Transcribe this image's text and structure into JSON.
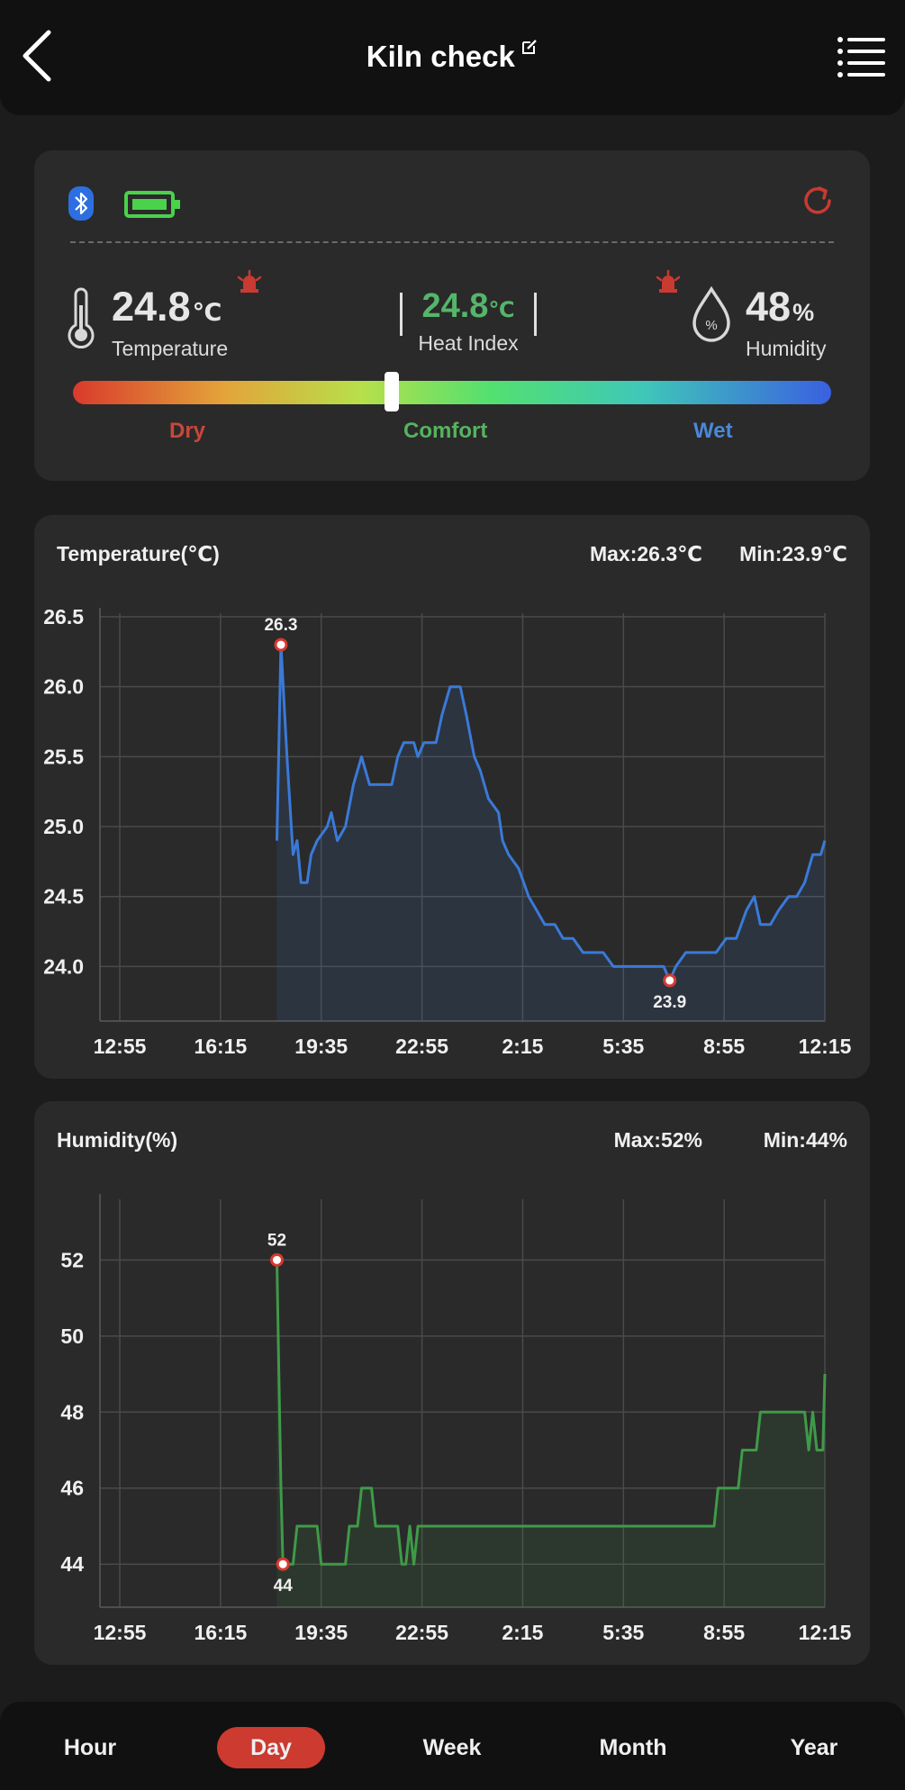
{
  "header": {
    "title": "Kiln check"
  },
  "status": {
    "temperature": {
      "value": "24.8",
      "unit": "℃",
      "label": "Temperature"
    },
    "heat_index": {
      "value": "24.8",
      "unit": "℃",
      "label": "Heat Index"
    },
    "humidity": {
      "value": "48",
      "unit": "%",
      "label": "Humidity"
    },
    "comfort_level": 0.42,
    "levels": {
      "dry": "Dry",
      "comfort": "Comfort",
      "wet": "Wet"
    },
    "colors": {
      "dry": "#c9473a",
      "comfort": "#56b35f",
      "wet": "#4a88d8",
      "alarm": "#c93a32",
      "bluetooth": "#2d6fe0",
      "battery": "#4ad24a"
    }
  },
  "icons": [
    "back-arrow-icon",
    "edit-icon",
    "menu-list-icon",
    "bluetooth-icon",
    "battery-icon",
    "refresh-icon",
    "thermometer-icon",
    "alarm-bell-icon",
    "water-drop-icon"
  ],
  "tabs": [
    {
      "label": "Hour",
      "active": false
    },
    {
      "label": "Day",
      "active": true
    },
    {
      "label": "Week",
      "active": false
    },
    {
      "label": "Month",
      "active": false
    },
    {
      "label": "Year",
      "active": false
    }
  ],
  "chart_data": [
    {
      "type": "area",
      "title": "Temperature(℃)",
      "max_label": "Max:26.3℃",
      "min_label": "Min:23.9℃",
      "color": "#3a7ad8",
      "x_ticks": [
        "12:55",
        "16:15",
        "19:35",
        "22:55",
        "2:15",
        "5:35",
        "8:55",
        "12:15"
      ],
      "y_ticks": [
        "26.5",
        "26.0",
        "25.5",
        "25.0",
        "24.5",
        "24.0"
      ],
      "ylim": [
        23.7,
        26.5
      ],
      "xlim": [
        0,
        7
      ],
      "max_point": {
        "x": 1.6,
        "y": 26.3,
        "label": "26.3"
      },
      "min_point": {
        "x": 5.46,
        "y": 23.9,
        "label": "23.9"
      },
      "points": [
        [
          1.56,
          24.9
        ],
        [
          1.6,
          26.3
        ],
        [
          1.66,
          25.5
        ],
        [
          1.72,
          24.8
        ],
        [
          1.76,
          24.9
        ],
        [
          1.8,
          24.6
        ],
        [
          1.86,
          24.6
        ],
        [
          1.9,
          24.8
        ],
        [
          1.96,
          24.9
        ],
        [
          2.06,
          25.0
        ],
        [
          2.1,
          25.1
        ],
        [
          2.16,
          24.9
        ],
        [
          2.24,
          25.0
        ],
        [
          2.32,
          25.3
        ],
        [
          2.4,
          25.5
        ],
        [
          2.48,
          25.3
        ],
        [
          2.6,
          25.3
        ],
        [
          2.7,
          25.3
        ],
        [
          2.76,
          25.5
        ],
        [
          2.82,
          25.6
        ],
        [
          2.92,
          25.6
        ],
        [
          2.96,
          25.5
        ],
        [
          3.02,
          25.6
        ],
        [
          3.14,
          25.6
        ],
        [
          3.2,
          25.8
        ],
        [
          3.28,
          26.0
        ],
        [
          3.38,
          26.0
        ],
        [
          3.44,
          25.8
        ],
        [
          3.52,
          25.5
        ],
        [
          3.58,
          25.4
        ],
        [
          3.66,
          25.2
        ],
        [
          3.76,
          25.1
        ],
        [
          3.8,
          24.9
        ],
        [
          3.86,
          24.8
        ],
        [
          3.96,
          24.7
        ],
        [
          4.06,
          24.5
        ],
        [
          4.14,
          24.4
        ],
        [
          4.22,
          24.3
        ],
        [
          4.32,
          24.3
        ],
        [
          4.4,
          24.2
        ],
        [
          4.5,
          24.2
        ],
        [
          4.6,
          24.1
        ],
        [
          4.8,
          24.1
        ],
        [
          4.9,
          24.0
        ],
        [
          5.0,
          24.0
        ],
        [
          5.1,
          24.0
        ],
        [
          5.2,
          24.0
        ],
        [
          5.3,
          24.0
        ],
        [
          5.4,
          24.0
        ],
        [
          5.46,
          23.9
        ],
        [
          5.52,
          24.0
        ],
        [
          5.62,
          24.1
        ],
        [
          5.72,
          24.1
        ],
        [
          5.82,
          24.1
        ],
        [
          5.92,
          24.1
        ],
        [
          6.02,
          24.2
        ],
        [
          6.12,
          24.2
        ],
        [
          6.22,
          24.4
        ],
        [
          6.3,
          24.5
        ],
        [
          6.36,
          24.3
        ],
        [
          6.46,
          24.3
        ],
        [
          6.54,
          24.4
        ],
        [
          6.64,
          24.5
        ],
        [
          6.72,
          24.5
        ],
        [
          6.8,
          24.6
        ],
        [
          6.88,
          24.8
        ],
        [
          6.96,
          24.8
        ],
        [
          7.0,
          24.9
        ]
      ]
    },
    {
      "type": "area",
      "title": "Humidity(%)",
      "max_label": "Max:52%",
      "min_label": "Min:44%",
      "color": "#3f9a48",
      "x_ticks": [
        "12:55",
        "16:15",
        "19:35",
        "22:55",
        "2:15",
        "5:35",
        "8:55",
        "12:15"
      ],
      "y_ticks": [
        "52",
        "50",
        "48",
        "46",
        "44"
      ],
      "ylim": [
        43.2,
        53.5
      ],
      "xlim": [
        0,
        7
      ],
      "max_point": {
        "x": 1.56,
        "y": 52,
        "label": "52"
      },
      "min_point": {
        "x": 1.62,
        "y": 44,
        "label": "44"
      },
      "points": [
        [
          1.56,
          52
        ],
        [
          1.58,
          49
        ],
        [
          1.6,
          46
        ],
        [
          1.62,
          44
        ],
        [
          1.72,
          44
        ],
        [
          1.76,
          45
        ],
        [
          1.96,
          45
        ],
        [
          2.0,
          44
        ],
        [
          2.24,
          44
        ],
        [
          2.28,
          45
        ],
        [
          2.36,
          45
        ],
        [
          2.4,
          46
        ],
        [
          2.5,
          46
        ],
        [
          2.54,
          45
        ],
        [
          2.76,
          45
        ],
        [
          2.8,
          44
        ],
        [
          2.84,
          44
        ],
        [
          2.88,
          45
        ],
        [
          2.92,
          44
        ],
        [
          2.96,
          45
        ],
        [
          3.2,
          45
        ],
        [
          3.8,
          45
        ],
        [
          4.4,
          45
        ],
        [
          5.0,
          45
        ],
        [
          5.6,
          45
        ],
        [
          5.9,
          45
        ],
        [
          5.94,
          46
        ],
        [
          6.14,
          46
        ],
        [
          6.18,
          47
        ],
        [
          6.32,
          47
        ],
        [
          6.36,
          48
        ],
        [
          6.8,
          48
        ],
        [
          6.84,
          47
        ],
        [
          6.88,
          48
        ],
        [
          6.92,
          47
        ],
        [
          6.98,
          47
        ],
        [
          7.0,
          49
        ]
      ]
    }
  ]
}
